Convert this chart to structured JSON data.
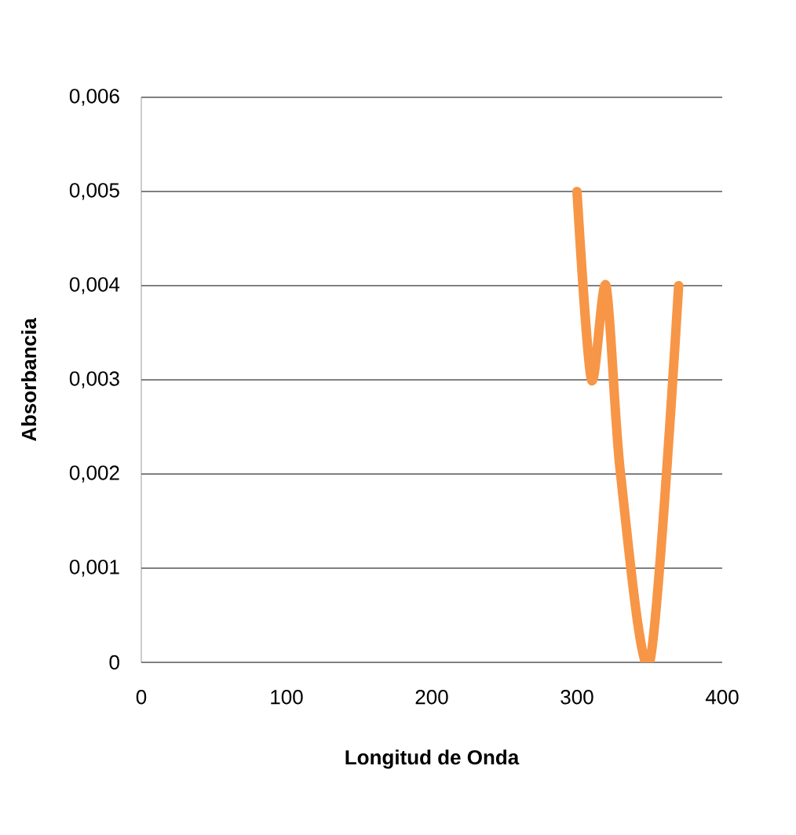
{
  "chart_data": {
    "type": "line",
    "xlabel": "Longitud de Onda",
    "ylabel": "Absorbancia",
    "x": [
      300,
      310,
      320,
      330,
      350,
      370
    ],
    "series": [
      {
        "color": "#f79646",
        "values": [
          0.005,
          0.003,
          0.004,
          0.002,
          0,
          0.004
        ]
      }
    ],
    "xlim": [
      0,
      400
    ],
    "xticks": [
      0,
      100,
      200,
      300,
      400
    ],
    "ylim": [
      0,
      0.006
    ],
    "yticks": [
      {
        "value": 0,
        "label": "0"
      },
      {
        "value": 0.001,
        "label": "0,001"
      },
      {
        "value": 0.002,
        "label": "0,002"
      },
      {
        "value": 0.003,
        "label": "0,003"
      },
      {
        "value": 0.004,
        "label": "0,004"
      },
      {
        "value": 0.005,
        "label": "0,005"
      },
      {
        "value": 0.006,
        "label": "0,006"
      }
    ],
    "grid": "y",
    "marker": "none",
    "line_style": "solid"
  }
}
